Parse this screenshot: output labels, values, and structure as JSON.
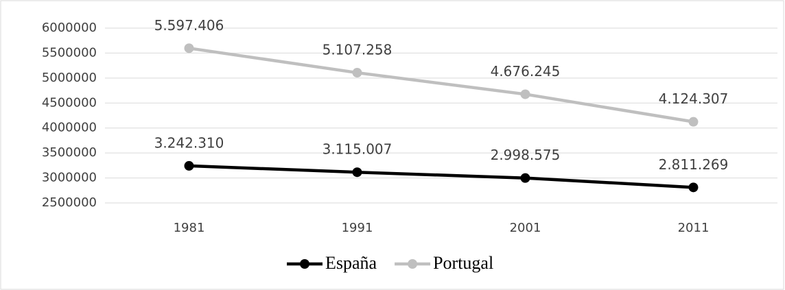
{
  "chart_data": {
    "type": "line",
    "categories": [
      "1981",
      "1991",
      "2001",
      "2011"
    ],
    "series": [
      {
        "name": "España",
        "color": "#000000",
        "values": [
          3242310,
          3115007,
          2998575,
          2811269
        ],
        "value_labels": [
          "3.242.310",
          "3.115.007",
          "2.998.575",
          "2.811.269"
        ]
      },
      {
        "name": "Portugal",
        "color": "#bfbfbf",
        "values": [
          5597406,
          5107258,
          4676245,
          4124307
        ],
        "value_labels": [
          "5.597.406",
          "5.107.258",
          "4.676.245",
          "4.124.307"
        ]
      }
    ],
    "ylim": [
      2500000,
      6000000
    ],
    "yticks": [
      2500000,
      3000000,
      3500000,
      4000000,
      4500000,
      5000000,
      5500000,
      6000000
    ],
    "grid": true,
    "legend": "bottom"
  }
}
